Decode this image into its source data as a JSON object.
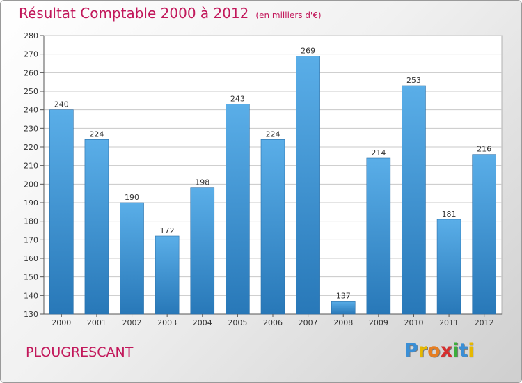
{
  "header": {
    "title": "Résultat Comptable 2000 à 2012",
    "subtitle": "(en milliers d'€)"
  },
  "footer": {
    "place": "PLOUGRESCANT",
    "logo_letters": [
      {
        "char": "P",
        "color": "#3a8fd6"
      },
      {
        "char": "r",
        "color": "#e6b800"
      },
      {
        "char": "o",
        "color": "#e67e22"
      },
      {
        "char": "x",
        "color": "#d62f2f"
      },
      {
        "char": "i",
        "color": "#3cae3c"
      },
      {
        "char": "t",
        "color": "#3a8fd6"
      },
      {
        "char": "i",
        "color": "#e6b800"
      }
    ]
  },
  "colors": {
    "bar_top": "#5aaee8",
    "bar_bottom": "#2878b8",
    "grid": "#c8c8c8",
    "accent": "#c2185b"
  },
  "chart_data": {
    "type": "bar",
    "title": "Résultat Comptable 2000 à 2012",
    "subtitle": "(en milliers d'€)",
    "categories": [
      "2000",
      "2001",
      "2002",
      "2003",
      "2004",
      "2005",
      "2006",
      "2007",
      "2008",
      "2009",
      "2010",
      "2011",
      "2012"
    ],
    "values": [
      240,
      224,
      190,
      172,
      198,
      243,
      224,
      269,
      137,
      214,
      253,
      181,
      216
    ],
    "ylim": [
      130,
      280
    ],
    "yticks": [
      130,
      140,
      150,
      160,
      170,
      180,
      190,
      200,
      210,
      220,
      230,
      240,
      250,
      260,
      270,
      280
    ],
    "grid": true,
    "xlabel": "",
    "ylabel": ""
  }
}
